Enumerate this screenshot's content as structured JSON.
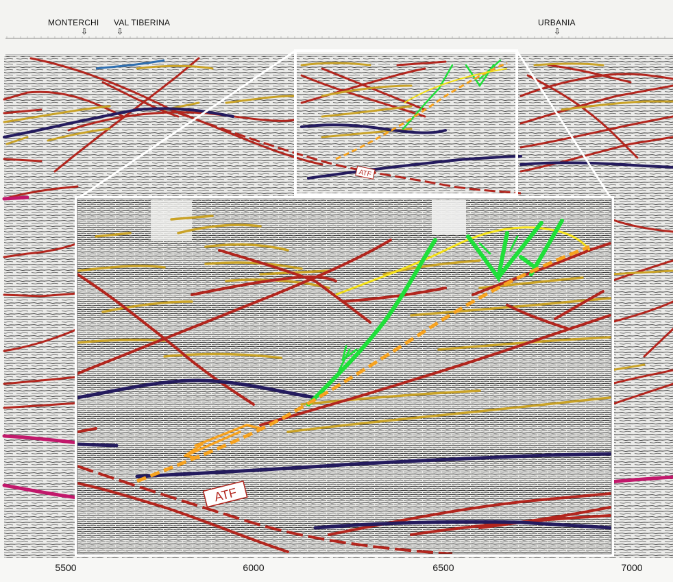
{
  "locations": [
    {
      "name": "MONTERCHI",
      "arrow": "⇩"
    },
    {
      "name": "VAL TIBERINA",
      "arrow": "⇩"
    },
    {
      "name": "URBANIA",
      "arrow": "⇩"
    }
  ],
  "fault_label": "ATF",
  "x_axis": {
    "tick_labels": [
      "5500",
      "6000",
      "6500",
      "7000"
    ]
  },
  "colors": {
    "background": "#f4f4f2",
    "seismic_noise": "#2a2a2a",
    "red_horizon": "#b3261e",
    "yellow_horizon": "#c9a227",
    "navy_horizon": "#241b5e",
    "green_fault": "#1fe03a",
    "orange_fault": "#f7a320",
    "pink_horizon": "#c2186b",
    "blue_horizon": "#2f6fb0",
    "bright_yellow": "#f4e11a",
    "frame": "#ffffff"
  }
}
